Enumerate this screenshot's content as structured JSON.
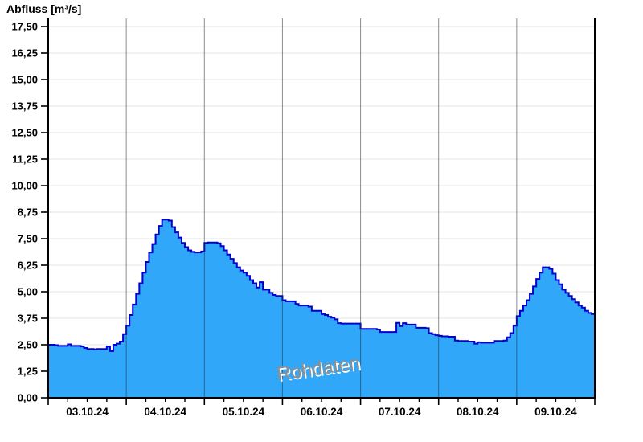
{
  "chart_data": {
    "type": "area",
    "title": "Abfluss [m³/s]",
    "watermark": "Rohdaten",
    "y_axis": {
      "min": 0,
      "max": 17.5,
      "tick_step": 1.25,
      "tick_labels_top_to_bottom": [
        "17,50",
        "16,25",
        "15,00",
        "13,75",
        "12,50",
        "11,25",
        "10,00",
        "8,75",
        "7,50",
        "6,25",
        "5,00",
        "3,75",
        "2,50",
        "1,25",
        "0,00"
      ],
      "grid": true
    },
    "x_axis": {
      "day_labels": [
        "03.10.24",
        "04.10.24",
        "05.10.24",
        "06.10.24",
        "07.10.24",
        "08.10.24",
        "09.10.24"
      ],
      "minor_ticks_per_day": 4,
      "day_boundary_gridlines": true
    },
    "series": [
      {
        "name": "Abfluss",
        "unit": "m³/s",
        "step": true,
        "samples_per_day": 24,
        "values": [
          2.5,
          2.5,
          2.48,
          2.45,
          2.45,
          2.45,
          2.52,
          2.45,
          2.45,
          2.45,
          2.42,
          2.35,
          2.3,
          2.3,
          2.28,
          2.3,
          2.3,
          2.3,
          2.42,
          2.2,
          2.5,
          2.55,
          2.65,
          3.0,
          3.4,
          3.9,
          4.4,
          4.9,
          5.4,
          5.9,
          6.4,
          6.85,
          7.25,
          7.7,
          8.1,
          8.4,
          8.4,
          8.35,
          8.05,
          7.8,
          7.55,
          7.3,
          7.1,
          6.95,
          6.88,
          6.85,
          6.85,
          6.9,
          7.3,
          7.32,
          7.32,
          7.32,
          7.28,
          7.15,
          6.95,
          6.75,
          6.55,
          6.35,
          6.15,
          6.0,
          5.9,
          5.75,
          5.55,
          5.4,
          5.2,
          5.45,
          5.1,
          5.1,
          4.95,
          4.85,
          4.8,
          4.8,
          4.6,
          4.55,
          4.55,
          4.55,
          4.42,
          4.35,
          4.35,
          4.35,
          4.3,
          4.1,
          4.1,
          4.1,
          3.95,
          3.9,
          3.82,
          3.78,
          3.7,
          3.52,
          3.5,
          3.5,
          3.5,
          3.5,
          3.5,
          3.5,
          3.25,
          3.25,
          3.25,
          3.25,
          3.25,
          3.22,
          3.1,
          3.1,
          3.1,
          3.1,
          3.1,
          3.53,
          3.38,
          3.52,
          3.45,
          3.45,
          3.45,
          3.3,
          3.3,
          3.3,
          3.28,
          3.05,
          3.0,
          2.95,
          2.92,
          2.9,
          2.9,
          2.88,
          2.88,
          2.7,
          2.68,
          2.68,
          2.68,
          2.65,
          2.65,
          2.55,
          2.62,
          2.6,
          2.6,
          2.6,
          2.6,
          2.68,
          2.68,
          2.68,
          2.7,
          2.85,
          3.05,
          3.4,
          3.85,
          4.1,
          4.35,
          4.6,
          4.9,
          5.25,
          5.6,
          5.9,
          6.15,
          6.15,
          6.08,
          5.85,
          5.55,
          5.35,
          5.1,
          4.95,
          4.8,
          4.65,
          4.5,
          4.35,
          4.25,
          4.1,
          4.0,
          3.95
        ]
      }
    ],
    "colors": {
      "area_fill": "#30A7F8",
      "line": "#0000CC",
      "axis": "#000000",
      "h_gridline": "#EDEDED",
      "day_gridline": "rgba(40,50,60,0.55)",
      "watermark_text": "#8F8F8F",
      "label_text": "#000000"
    }
  }
}
